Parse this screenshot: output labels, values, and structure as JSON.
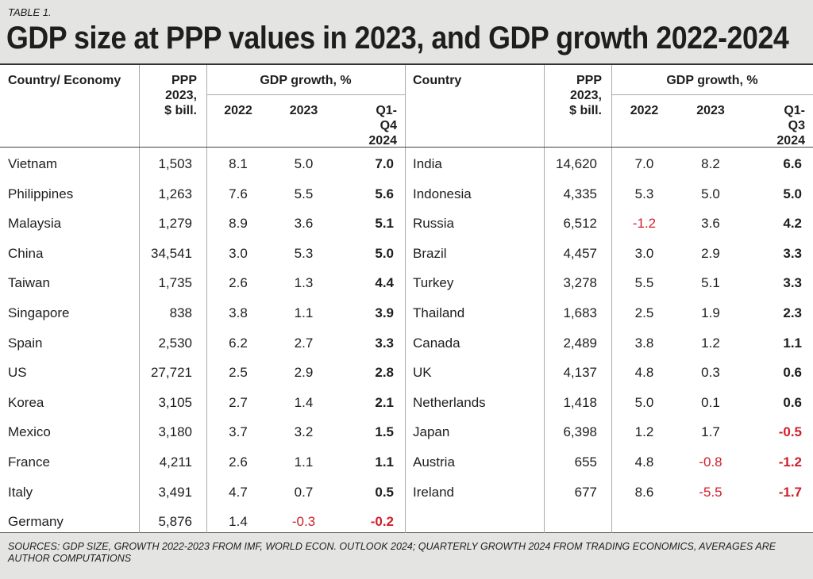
{
  "label": "TABLE 1.",
  "title": "GDP size at PPP values in 2023, and GDP growth 2022-2024",
  "table": {
    "left": {
      "country": "Country/ Economy",
      "ppp": "PPP 2023, $ bill.",
      "growth": "GDP growth, %",
      "years": [
        "2022",
        "2023",
        "Q1-Q4 2024"
      ],
      "rows": [
        [
          "Vietnam",
          "1,503",
          "8.1",
          "5.0",
          "7.0"
        ],
        [
          "Philippines",
          "1,263",
          "7.6",
          "5.5",
          "5.6"
        ],
        [
          "Malaysia",
          "1,279",
          "8.9",
          "3.6",
          "5.1"
        ],
        [
          "China",
          "34,541",
          "3.0",
          "5.3",
          "5.0"
        ],
        [
          "Taiwan",
          "1,735",
          "2.6",
          "1.3",
          "4.4"
        ],
        [
          "Singapore",
          "838",
          "3.8",
          "1.1",
          "3.9"
        ],
        [
          "Spain",
          "2,530",
          "6.2",
          "2.7",
          "3.3"
        ],
        [
          "US",
          "27,721",
          "2.5",
          "2.9",
          "2.8"
        ],
        [
          "Korea",
          "3,105",
          "2.7",
          "1.4",
          "2.1"
        ],
        [
          "Mexico",
          "3,180",
          "3.7",
          "3.2",
          "1.5"
        ],
        [
          "France",
          "4,211",
          "2.6",
          "1.1",
          "1.1"
        ],
        [
          "Italy",
          "3,491",
          "4.7",
          "0.7",
          "0.5"
        ],
        [
          "Germany",
          "5,876",
          "1.4",
          "-0.3",
          "-0.2"
        ]
      ]
    },
    "right": {
      "country": "Country",
      "ppp": "PPP 2023, $ bill.",
      "growth": "GDP growth, %",
      "years": [
        "2022",
        "2023",
        "Q1-Q3 2024"
      ],
      "rows": [
        [
          "India",
          "14,620",
          "7.0",
          "8.2",
          "6.6"
        ],
        [
          "Indonesia",
          "4,335",
          "5.3",
          "5.0",
          "5.0"
        ],
        [
          "Russia",
          "6,512",
          "-1.2",
          "3.6",
          "4.2"
        ],
        [
          "Brazil",
          "4,457",
          "3.0",
          "2.9",
          "3.3"
        ],
        [
          "Turkey",
          "3,278",
          "5.5",
          "5.1",
          "3.3"
        ],
        [
          "Thailand",
          "1,683",
          "2.5",
          "1.9",
          "2.3"
        ],
        [
          "Canada",
          "2,489",
          "3.8",
          "1.2",
          "1.1"
        ],
        [
          "UK",
          "4,137",
          "4.8",
          "0.3",
          "0.6"
        ],
        [
          "Netherlands",
          "1,418",
          "5.0",
          "0.1",
          "0.6"
        ],
        [
          "Japan",
          "6,398",
          "1.2",
          "1.7",
          "-0.5"
        ],
        [
          "Austria",
          "655",
          "4.8",
          "-0.8",
          "-1.2"
        ],
        [
          "Ireland",
          "677",
          "8.6",
          "-5.5",
          "-1.7"
        ]
      ]
    }
  },
  "sources": "SOURCES: GDP SIZE, GROWTH 2022-2023 FROM IMF, WORLD ECON. OUTLOOK 2024; QUARTERLY GROWTH 2024 FROM TRADING ECONOMICS, AVERAGES ARE AUTHOR COMPUTATIONS"
}
